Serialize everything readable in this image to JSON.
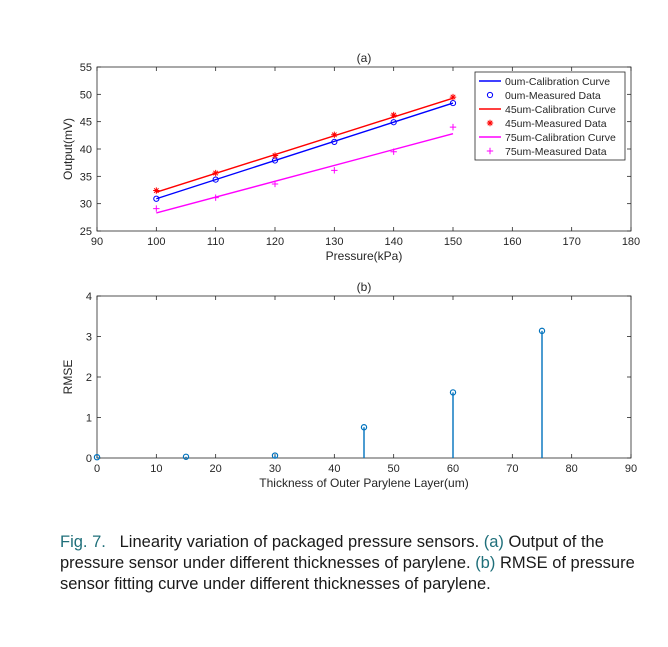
{
  "chart_data": [
    {
      "type": "line",
      "title": "(a)",
      "xlabel": "Pressure(kPa)",
      "ylabel": "Output(mV)",
      "xlim": [
        90,
        180
      ],
      "ylim": [
        25,
        55
      ],
      "xticks": [
        90,
        100,
        110,
        120,
        130,
        140,
        150,
        160,
        170,
        180
      ],
      "yticks": [
        25,
        30,
        35,
        40,
        45,
        50,
        55
      ],
      "grid": false,
      "legend_position": "top-right",
      "series": [
        {
          "name": "0um-Calibration Curve",
          "kind": "line",
          "color": "#0000ff",
          "x": [
            100,
            150
          ],
          "y": [
            30.9,
            48.4
          ]
        },
        {
          "name": "0um-Measured Data",
          "kind": "marker",
          "marker": "o",
          "color": "#0000ff",
          "x": [
            100,
            110,
            120,
            130,
            140,
            150
          ],
          "y": [
            30.9,
            34.4,
            37.9,
            41.3,
            44.9,
            48.4
          ]
        },
        {
          "name": "45um-Calibration Curve",
          "kind": "line",
          "color": "#ff0000",
          "x": [
            100,
            150
          ],
          "y": [
            32.1,
            49.3
          ]
        },
        {
          "name": "45um-Measured Data",
          "kind": "marker",
          "marker": "*",
          "color": "#ff0000",
          "x": [
            100,
            110,
            120,
            130,
            140,
            150
          ],
          "y": [
            32.4,
            35.6,
            38.8,
            42.6,
            46.2,
            49.5
          ]
        },
        {
          "name": "75um-Calibration Curve",
          "kind": "line",
          "color": "#ff00ff",
          "x": [
            100,
            150
          ],
          "y": [
            28.3,
            42.8
          ]
        },
        {
          "name": "75um-Measured Data",
          "kind": "marker",
          "marker": "+",
          "color": "#ff00ff",
          "x": [
            100,
            110,
            120,
            130,
            140,
            150
          ],
          "y": [
            29.1,
            31.1,
            33.6,
            36.1,
            39.5,
            44.0
          ]
        }
      ]
    },
    {
      "type": "stem",
      "title": "(b)",
      "xlabel": "Thickness of Outer Parylene Layer(um)",
      "ylabel": "RMSE",
      "xlim": [
        0,
        90
      ],
      "ylim": [
        0,
        4
      ],
      "xticks": [
        0,
        10,
        20,
        30,
        40,
        50,
        60,
        70,
        80,
        90
      ],
      "yticks": [
        0,
        1,
        2,
        3,
        4
      ],
      "grid": false,
      "color": "#0072bd",
      "x": [
        0,
        15,
        30,
        45,
        60,
        75
      ],
      "y": [
        0.02,
        0.03,
        0.06,
        0.76,
        1.62,
        3.14
      ]
    }
  ],
  "caption": {
    "fig_num": "Fig. 7.",
    "part1": "Linearity variation of packaged pressure sensors.",
    "ref_a": "(a)",
    "part2": "Output of the pressure sensor under different thicknesses of parylene.",
    "ref_b": "(b)",
    "part3": "RMSE of pressure sensor fitting curve under different thicknesses of parylene."
  }
}
